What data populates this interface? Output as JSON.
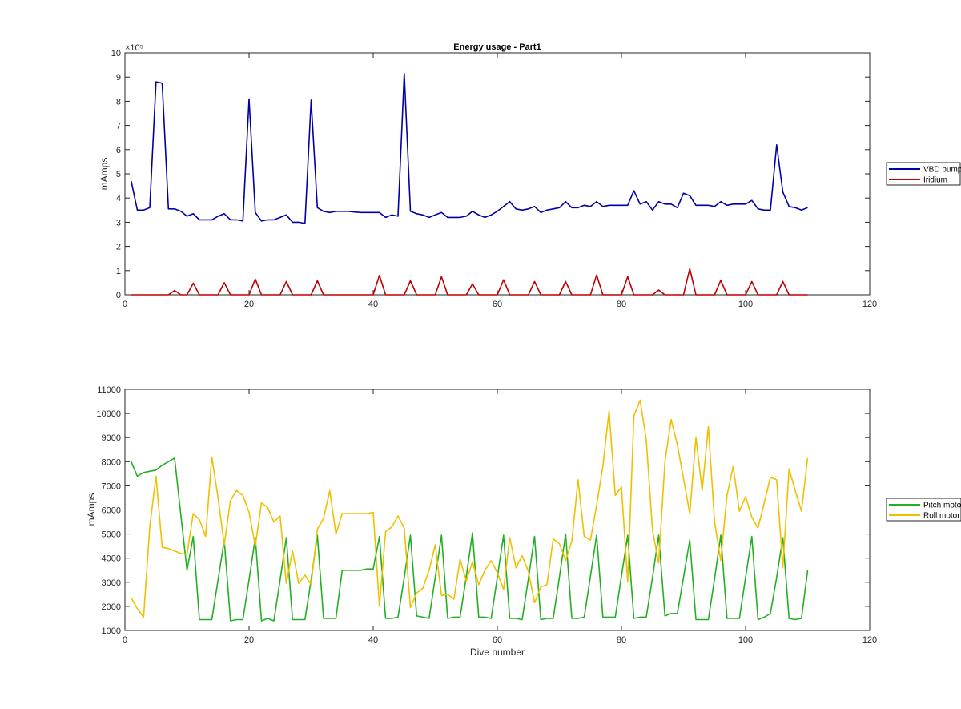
{
  "chart_data": [
    {
      "type": "line",
      "title": "Energy usage - Part1",
      "xlabel": "",
      "ylabel": "mAmps",
      "exponent_label": "×10⁵",
      "xlim": [
        0,
        120
      ],
      "ylim": [
        0,
        10
      ],
      "y_multiplier": 100000,
      "xticks": [
        0,
        20,
        40,
        60,
        80,
        100,
        120
      ],
      "yticks": [
        0,
        1,
        2,
        3,
        4,
        5,
        6,
        7,
        8,
        9,
        10
      ],
      "grid": false,
      "legend_position": "right",
      "series": [
        {
          "name": "VBD pump",
          "color": "#0000a8",
          "x": [
            1,
            2,
            3,
            4,
            5,
            6,
            7,
            8,
            9,
            10,
            11,
            12,
            13,
            14,
            15,
            16,
            17,
            18,
            19,
            20,
            21,
            22,
            23,
            24,
            25,
            26,
            27,
            28,
            29,
            30,
            31,
            32,
            33,
            34,
            35,
            36,
            37,
            38,
            39,
            40,
            41,
            42,
            43,
            44,
            45,
            46,
            47,
            48,
            49,
            50,
            51,
            52,
            53,
            54,
            55,
            56,
            57,
            58,
            59,
            60,
            61,
            62,
            63,
            64,
            65,
            66,
            67,
            68,
            69,
            70,
            71,
            72,
            73,
            74,
            75,
            76,
            77,
            78,
            79,
            80,
            81,
            82,
            83,
            84,
            85,
            86,
            87,
            88,
            89,
            90,
            91,
            92,
            93,
            94,
            95,
            96,
            97,
            98,
            99,
            100,
            101,
            102,
            103,
            104,
            105,
            106,
            107,
            108,
            109,
            110
          ],
          "y": [
            4.7,
            3.5,
            3.5,
            3.6,
            8.8,
            8.75,
            3.55,
            3.55,
            3.45,
            3.25,
            3.35,
            3.1,
            3.1,
            3.1,
            3.25,
            3.35,
            3.1,
            3.1,
            3.05,
            8.1,
            3.4,
            3.05,
            3.1,
            3.1,
            3.2,
            3.3,
            3.0,
            3.0,
            2.95,
            8.05,
            3.6,
            3.45,
            3.4,
            3.45,
            3.45,
            3.45,
            3.42,
            3.4,
            3.4,
            3.4,
            3.4,
            3.2,
            3.3,
            3.25,
            9.15,
            3.45,
            3.35,
            3.3,
            3.2,
            3.3,
            3.4,
            3.2,
            3.2,
            3.2,
            3.25,
            3.45,
            3.3,
            3.2,
            3.3,
            3.45,
            3.65,
            3.85,
            3.55,
            3.5,
            3.55,
            3.65,
            3.4,
            3.5,
            3.55,
            3.6,
            3.85,
            3.6,
            3.6,
            3.7,
            3.65,
            3.85,
            3.65,
            3.7,
            3.7,
            3.7,
            3.7,
            4.3,
            3.75,
            3.85,
            3.5,
            3.85,
            3.75,
            3.75,
            3.6,
            4.2,
            4.1,
            3.7,
            3.7,
            3.7,
            3.65,
            3.85,
            3.7,
            3.75,
            3.75,
            3.75,
            3.9,
            3.55,
            3.5,
            3.5,
            6.2,
            4.25,
            3.65,
            3.6,
            3.5,
            3.6
          ]
        },
        {
          "name": "Iridium",
          "color": "#c00000",
          "x": [
            1,
            2,
            3,
            4,
            5,
            6,
            7,
            8,
            9,
            10,
            11,
            12,
            13,
            14,
            15,
            16,
            17,
            18,
            19,
            20,
            21,
            22,
            23,
            24,
            25,
            26,
            27,
            28,
            29,
            30,
            31,
            32,
            33,
            34,
            35,
            36,
            37,
            38,
            39,
            40,
            41,
            42,
            43,
            44,
            45,
            46,
            47,
            48,
            49,
            50,
            51,
            52,
            53,
            54,
            55,
            56,
            57,
            58,
            59,
            60,
            61,
            62,
            63,
            64,
            65,
            66,
            67,
            68,
            69,
            70,
            71,
            72,
            73,
            74,
            75,
            76,
            77,
            78,
            79,
            80,
            81,
            82,
            83,
            84,
            85,
            86,
            87,
            88,
            89,
            90,
            91,
            92,
            93,
            94,
            95,
            96,
            97,
            98,
            99,
            100,
            101,
            102,
            103,
            104,
            105,
            106,
            107,
            108,
            109,
            110
          ],
          "y": [
            0,
            0,
            0,
            0,
            0,
            0,
            0,
            0.18,
            0,
            0,
            0.48,
            0,
            0,
            0,
            0,
            0.5,
            0,
            0,
            0,
            0,
            0.65,
            0,
            0,
            0,
            0,
            0.55,
            0,
            0,
            0,
            0,
            0.58,
            0,
            0,
            0,
            0,
            0,
            0,
            0,
            0,
            0,
            0.8,
            0,
            0,
            0,
            0,
            0.58,
            0,
            0,
            0,
            0,
            0.75,
            0,
            0,
            0,
            0,
            0.45,
            0,
            0,
            0,
            0,
            0.62,
            0,
            0,
            0,
            0,
            0.55,
            0,
            0,
            0,
            0,
            0.55,
            0,
            0,
            0,
            0,
            0.82,
            0,
            0,
            0,
            0,
            0.75,
            0,
            0,
            0,
            0,
            0.2,
            0,
            0,
            0,
            0,
            1.08,
            0,
            0,
            0,
            0,
            0.6,
            0,
            0,
            0,
            0,
            0.55,
            0,
            0,
            0,
            0,
            0.55,
            0,
            0,
            0,
            0
          ]
        }
      ]
    },
    {
      "type": "line",
      "title": "",
      "xlabel": "Dive number",
      "ylabel": "mAmps",
      "xlim": [
        0,
        120
      ],
      "ylim": [
        1000,
        11000
      ],
      "xticks": [
        0,
        20,
        40,
        60,
        80,
        100,
        120
      ],
      "yticks": [
        1000,
        2000,
        3000,
        4000,
        5000,
        6000,
        7000,
        8000,
        9000,
        10000,
        11000
      ],
      "grid": false,
      "legend_position": "right",
      "series": [
        {
          "name": "Pitch motor",
          "color": "#22b022",
          "x": [
            1,
            2,
            3,
            4,
            5,
            6,
            7,
            8,
            9,
            10,
            11,
            12,
            13,
            14,
            15,
            16,
            17,
            18,
            19,
            20,
            21,
            22,
            23,
            24,
            25,
            26,
            27,
            28,
            29,
            30,
            31,
            32,
            33,
            34,
            35,
            36,
            37,
            38,
            39,
            40,
            41,
            42,
            43,
            44,
            45,
            46,
            47,
            48,
            49,
            50,
            51,
            52,
            53,
            54,
            55,
            56,
            57,
            58,
            59,
            60,
            61,
            62,
            63,
            64,
            65,
            66,
            67,
            68,
            69,
            70,
            71,
            72,
            73,
            74,
            75,
            76,
            77,
            78,
            79,
            80,
            81,
            82,
            83,
            84,
            85,
            86,
            87,
            88,
            89,
            90,
            91,
            92,
            93,
            94,
            95,
            96,
            97,
            98,
            99,
            100,
            101,
            102,
            103,
            104,
            105,
            106,
            107,
            108,
            109,
            110
          ],
          "y": [
            8000,
            7400,
            7550,
            7600,
            7650,
            7850,
            8000,
            8150,
            5800,
            3500,
            4900,
            1450,
            1450,
            1450,
            3100,
            4750,
            1400,
            1450,
            1450,
            3100,
            4850,
            1400,
            1500,
            1400,
            3100,
            4850,
            1450,
            1450,
            1450,
            3100,
            4950,
            1500,
            1500,
            1500,
            3500,
            3500,
            3500,
            3500,
            3550,
            3550,
            4900,
            1500,
            1500,
            1550,
            3200,
            4950,
            1600,
            1550,
            1500,
            3200,
            4950,
            1500,
            1550,
            1550,
            3250,
            5050,
            1550,
            1550,
            1500,
            3200,
            4950,
            1500,
            1500,
            1450,
            3150,
            4900,
            1450,
            1500,
            1500,
            3200,
            5000,
            1500,
            1500,
            1550,
            3250,
            4950,
            1550,
            1550,
            1550,
            3250,
            4950,
            1500,
            1550,
            1550,
            3200,
            4950,
            1600,
            1700,
            1700,
            3200,
            4750,
            1450,
            1450,
            1450,
            3150,
            4950,
            1500,
            1500,
            1500,
            3200,
            4900,
            1450,
            1550,
            1700,
            3200,
            4850,
            1500,
            1450,
            1500,
            3500
          ]
        },
        {
          "name": "Roll motor",
          "color": "#f0c000",
          "x": [
            1,
            2,
            3,
            4,
            5,
            6,
            7,
            8,
            9,
            10,
            11,
            12,
            13,
            14,
            15,
            16,
            17,
            18,
            19,
            20,
            21,
            22,
            23,
            24,
            25,
            26,
            27,
            28,
            29,
            30,
            31,
            32,
            33,
            34,
            35,
            36,
            37,
            38,
            39,
            40,
            41,
            42,
            43,
            44,
            45,
            46,
            47,
            48,
            49,
            50,
            51,
            52,
            53,
            54,
            55,
            56,
            57,
            58,
            59,
            60,
            61,
            62,
            63,
            64,
            65,
            66,
            67,
            68,
            69,
            70,
            71,
            72,
            73,
            74,
            75,
            76,
            77,
            78,
            79,
            80,
            81,
            82,
            83,
            84,
            85,
            86,
            87,
            88,
            89,
            90,
            91,
            92,
            93,
            94,
            95,
            96,
            97,
            98,
            99,
            100,
            101,
            102,
            103,
            104,
            105,
            106,
            107,
            108,
            109,
            110
          ],
          "y": [
            2350,
            1900,
            1550,
            5300,
            7400,
            4450,
            4400,
            4300,
            4200,
            4150,
            5850,
            5600,
            4900,
            8200,
            6500,
            4550,
            6400,
            6800,
            6600,
            5900,
            4500,
            6300,
            6100,
            5500,
            5750,
            2950,
            4300,
            2950,
            3300,
            2900,
            5200,
            5650,
            6800,
            5000,
            5850,
            5850,
            5850,
            5850,
            5850,
            5900,
            2000,
            5100,
            5300,
            5750,
            5250,
            1950,
            2550,
            2750,
            3500,
            4550,
            2450,
            2500,
            2300,
            3950,
            3050,
            3850,
            2900,
            3500,
            3900,
            3400,
            2700,
            4850,
            3600,
            4100,
            3450,
            2150,
            2800,
            2900,
            4800,
            4600,
            3900,
            4700,
            7250,
            4900,
            4750,
            6200,
            7800,
            10100,
            6600,
            6950,
            3000,
            9900,
            10550,
            8900,
            5150,
            3800,
            8000,
            9750,
            8700,
            7300,
            5850,
            9000,
            6800,
            9450,
            5500,
            3900,
            6600,
            7800,
            5950,
            6550,
            5700,
            5250,
            6300,
            7350,
            7250,
            3600,
            7700,
            6800,
            5950,
            8150
          ]
        }
      ]
    }
  ]
}
